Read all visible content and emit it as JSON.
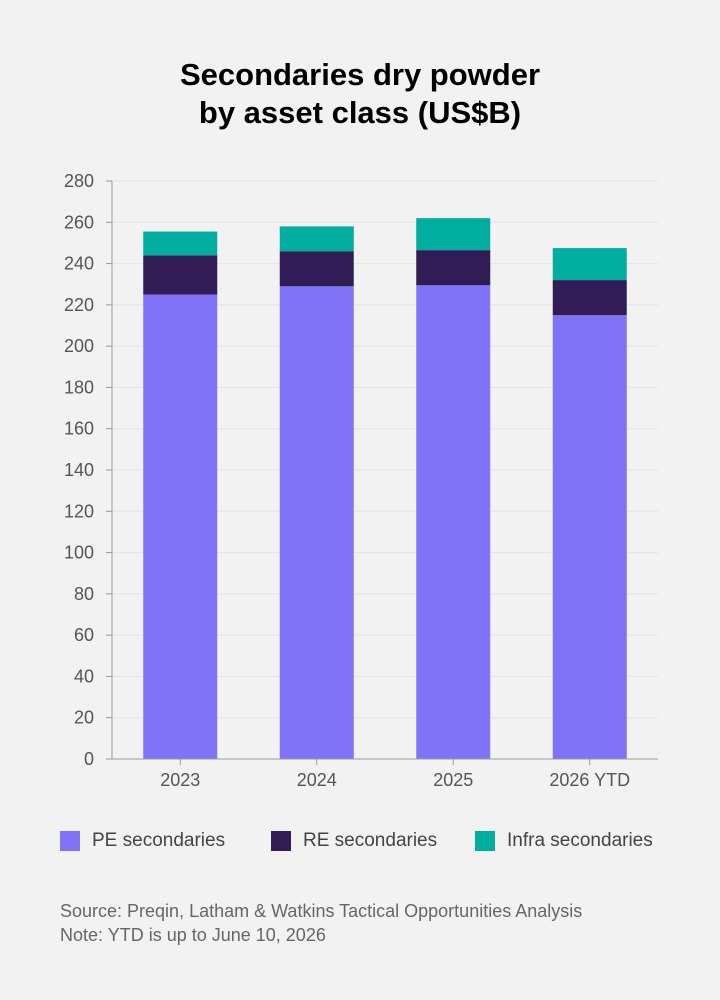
{
  "chart_data": {
    "type": "bar",
    "stacked": true,
    "title_lines": [
      "Secondaries dry powder",
      "by asset class (US$B)"
    ],
    "categories": [
      "2023",
      "2024",
      "2025",
      "2026 YTD"
    ],
    "series": [
      {
        "name": "PE secondaries",
        "color": "#8073f7",
        "values": [
          225,
          229,
          229.5,
          215
        ]
      },
      {
        "name": "RE secondaries",
        "color": "#311c55",
        "values": [
          19,
          17,
          17,
          17
        ]
      },
      {
        "name": "Infra secondaries",
        "color": "#00ad9f",
        "values": [
          11.5,
          12,
          15.5,
          15.5
        ]
      }
    ],
    "ylim": [
      0,
      280
    ],
    "yticks": [
      "0",
      "20",
      "40",
      "60",
      "80",
      "100",
      "120",
      "140",
      "160",
      "180",
      "200",
      "220",
      "240",
      "260",
      "280"
    ],
    "grid": true,
    "legend_position": "bottom"
  },
  "source_lines": [
    "Source: Preqin, Latham & Watkins Tactical Opportunities Analysis",
    "Note: YTD is up to June 10, 2026"
  ]
}
